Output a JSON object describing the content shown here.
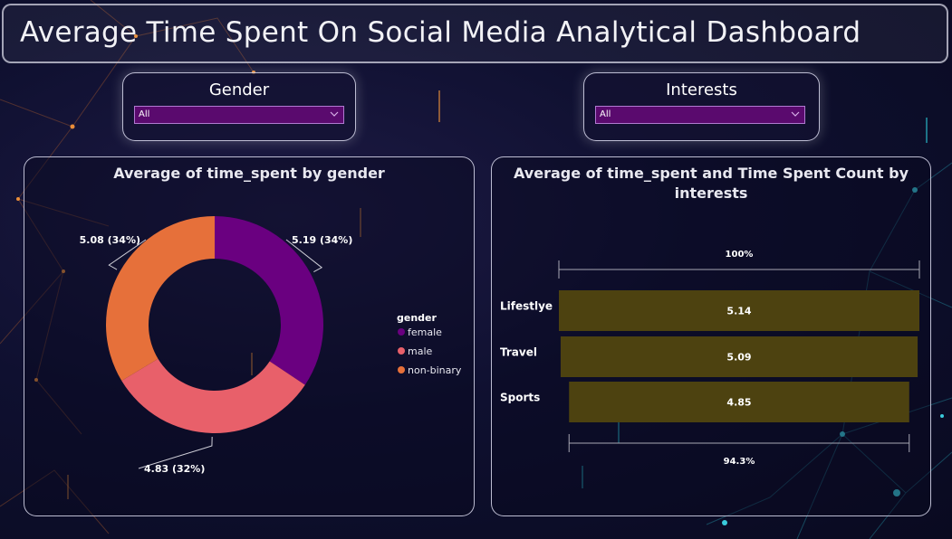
{
  "header": {
    "title": "Average Time Spent On Social Media Analytical Dashboard"
  },
  "slicers": {
    "gender": {
      "label": "Gender",
      "value": "All"
    },
    "interests": {
      "label": "Interests",
      "value": "All"
    }
  },
  "chart_data": [
    {
      "type": "pie",
      "title": "Average of time_spent by gender",
      "legend_title": "gender",
      "legend_position": "right",
      "categories": [
        "female",
        "male",
        "non-binary"
      ],
      "values": [
        5.19,
        4.83,
        5.08
      ],
      "percent_labels": [
        "34%",
        "32%",
        "34%"
      ],
      "data_labels": [
        "5.19 (34%)",
        "4.83 (32%)",
        "5.08 (34%)"
      ],
      "colors": [
        "#6a0080",
        "#e8606a",
        "#e6703a"
      ]
    },
    {
      "type": "bar",
      "title": "Average of time_spent and Time Spent Count by interests",
      "categories": [
        "Lifestlye",
        "Travel",
        "Sports"
      ],
      "values": [
        5.14,
        5.09,
        4.85
      ],
      "top_label": "100%",
      "bottom_label": "94.3%",
      "color": "#4d4210"
    }
  ]
}
